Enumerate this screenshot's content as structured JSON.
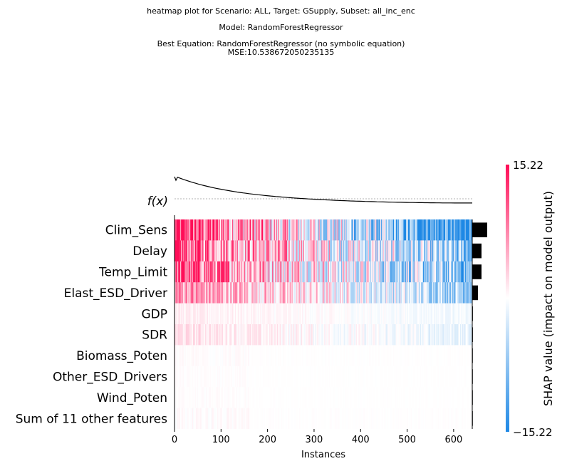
{
  "titles": {
    "line1": "heatmap plot for Scenario: ALL, Target: GSupply, Subset: all_inc_enc",
    "line2": "Model: RandomForestRegressor",
    "line3": "Best Equation: RandomForestRegressor (no symbolic equation)",
    "line4": "MSE:10.538672050235135"
  },
  "chart_data": {
    "type": "heatmap",
    "features": [
      {
        "name": "Clim_Sens",
        "importance": 3.4
      },
      {
        "name": "Delay",
        "importance": 2.1
      },
      {
        "name": "Temp_Limit",
        "importance": 2.1
      },
      {
        "name": "Elast_ESD_Driver",
        "importance": 1.3
      },
      {
        "name": "GDP",
        "importance": 0.15
      },
      {
        "name": "SDR",
        "importance": 0.15
      },
      {
        "name": "Biomass_Poten",
        "importance": 0.02
      },
      {
        "name": "Other_ESD_Drivers",
        "importance": 0.02
      },
      {
        "name": "Wind_Poten",
        "importance": 0.02
      },
      {
        "name": "Sum of 11 other features",
        "importance": 0.03
      }
    ],
    "n_instances": 640,
    "fx_label": "f(x)",
    "xlabel": "Instances",
    "x_ticks": [
      0,
      100,
      200,
      300,
      400,
      500,
      600
    ],
    "xlim": [
      0,
      640
    ],
    "colorbar": {
      "max_label": "15.22",
      "min_label": "−15.22",
      "min": -15.22,
      "max": 15.22,
      "title": "SHAP value (impact on model output)",
      "color_low": "#1e88e5",
      "color_mid": "#ffffff",
      "color_high": "#ff0d57"
    },
    "legend": "none",
    "grid": false
  }
}
